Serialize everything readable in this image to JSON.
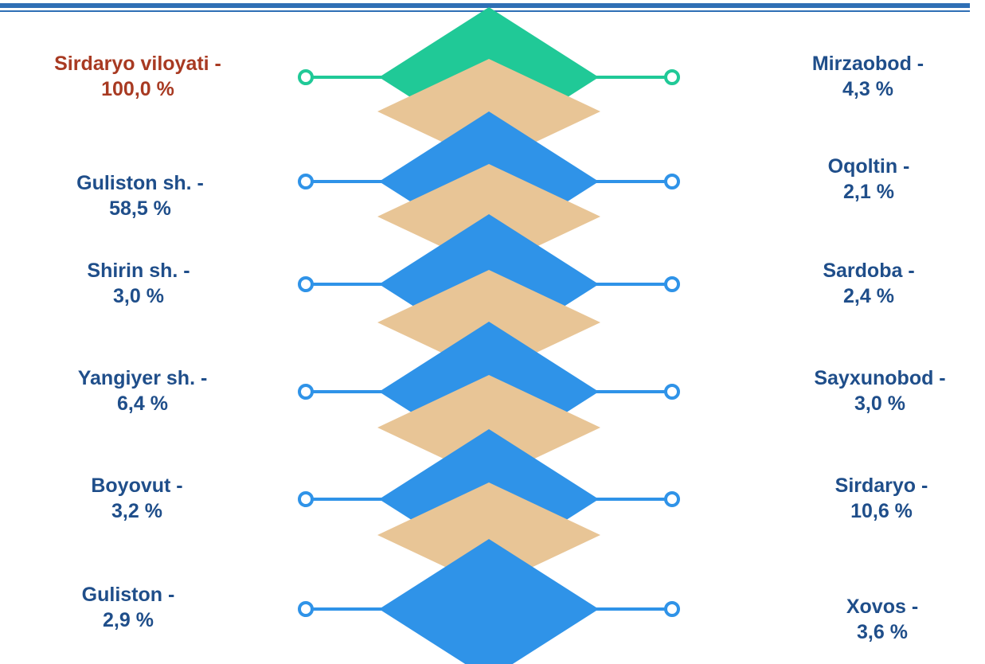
{
  "colors": {
    "header_rule": "#2f6fb5",
    "top_diamond": "#20c997",
    "blue_diamond": "#2f93e8",
    "tan_diamond": "#e8c596",
    "top_connector": "#20c997",
    "blue_connector": "#2f93e8",
    "label_blue": "#1f4e8a",
    "label_red": "#a83a22"
  },
  "rows": [
    {
      "left": {
        "name": "Sirdaryo viloyati -",
        "value": "100,0 %"
      },
      "right": {
        "name": "Mirzaobod -",
        "value": "4,3 %"
      }
    },
    {
      "left": {
        "name": "Guliston sh. -",
        "value": "58,5 %"
      },
      "right": {
        "name": "Oqoltin -",
        "value": "2,1 %"
      }
    },
    {
      "left": {
        "name": "Shirin sh. -",
        "value": "3,0 %"
      },
      "right": {
        "name": "Sardoba -",
        "value": "2,4 %"
      }
    },
    {
      "left": {
        "name": "Yangiyer sh. -",
        "value": "6,4 %"
      },
      "right": {
        "name": "Sayxunobod -",
        "value": "3,0 %"
      }
    },
    {
      "left": {
        "name": "Boyovut  -",
        "value": "3,2 %"
      },
      "right": {
        "name": "Sirdaryo -",
        "value": "10,6 %"
      }
    },
    {
      "left": {
        "name": "Guliston -",
        "value": "2,9 %"
      },
      "right": {
        "name": "Xovos -",
        "value": "3,6 %"
      }
    }
  ]
}
